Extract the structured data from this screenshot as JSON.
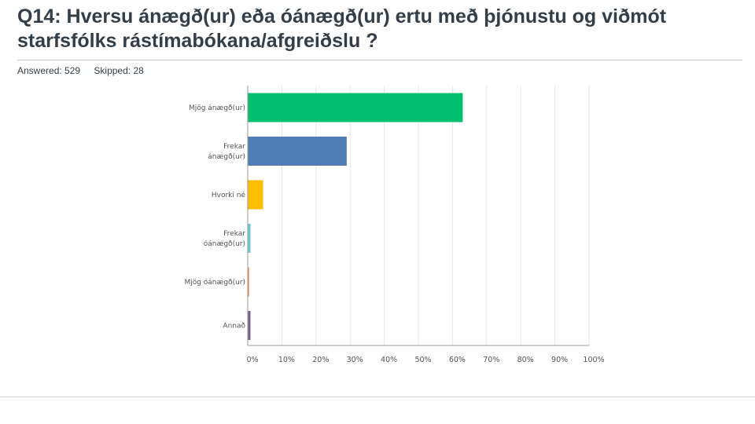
{
  "question": {
    "title": "Q14: Hversu ánægð(ur) eða óánægð(ur) ertu með þjónustu og viðmót starfsfólks rástímabókana/afgreiðslu ?"
  },
  "stats": {
    "answered_label": "Answered: 529",
    "skipped_label": "Skipped: 28"
  },
  "chart_data": {
    "type": "bar",
    "orientation": "horizontal",
    "title": "",
    "xlabel": "",
    "ylabel": "",
    "categories": [
      [
        "Mjög ánægð(ur)"
      ],
      [
        "Frekar",
        "ánægð(ur)"
      ],
      [
        "Hvorki né"
      ],
      [
        "Frekar",
        "óánægð(ur)"
      ],
      [
        "Mjög óánægð(ur)"
      ],
      [
        "Annað"
      ]
    ],
    "values": [
      63,
      29,
      4.5,
      0.8,
      0.4,
      0.8
    ],
    "colors": [
      "#00bf6f",
      "#507cb6",
      "#f9be00",
      "#6bc8cd",
      "#ff8b4f",
      "#7d5e90"
    ],
    "xlim": [
      0,
      100
    ],
    "ticks": [
      "0%",
      "10%",
      "20%",
      "30%",
      "40%",
      "50%",
      "60%",
      "70%",
      "80%",
      "90%",
      "100%"
    ],
    "tick_values": [
      0,
      10,
      20,
      30,
      40,
      50,
      60,
      70,
      80,
      90,
      100
    ],
    "grid": true,
    "legend": "none"
  }
}
